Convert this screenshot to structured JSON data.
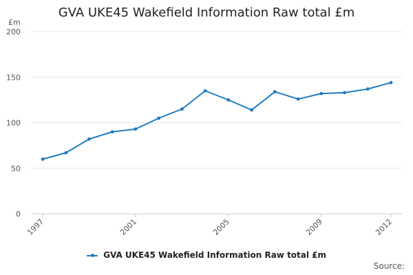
{
  "chart_data": {
    "type": "line",
    "title": "GVA UKE45 Wakefield Information Raw total £m",
    "unit_label": "£m",
    "xlabel": "",
    "ylabel": "",
    "ylim": [
      0,
      200
    ],
    "y_ticks": [
      0,
      50,
      100,
      150,
      200
    ],
    "x_tick_labels": [
      "1997",
      "2001",
      "2005",
      "2009",
      "2012"
    ],
    "x": [
      1997,
      1998,
      1999,
      2000,
      2001,
      2002,
      2003,
      2004,
      2005,
      2006,
      2007,
      2008,
      2009,
      2010,
      2011,
      2012
    ],
    "series": [
      {
        "name": "GVA UKE45 Wakefield Information Raw total £m",
        "color": "#1f7bbf",
        "values": [
          60,
          67,
          82,
          90,
          93,
          105,
          115,
          135,
          125,
          114,
          134,
          126,
          132,
          133,
          137,
          144
        ]
      }
    ],
    "grid": true,
    "legend_position": "bottom"
  },
  "footer": {
    "source_label": "Source:"
  }
}
